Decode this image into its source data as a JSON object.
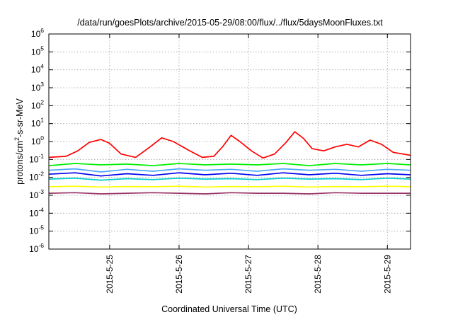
{
  "chart_data": {
    "type": "line",
    "title": "/data/run/goesPlots/archive/2015-05-29/08:00/flux/../flux/5daysMoonFluxes.txt",
    "xlabel": "Coordinated Universal Time (UTC)",
    "ylabel": "protons/cm²-s-sr-MeV",
    "y_scale": "log",
    "ylim": [
      1e-06,
      1000000.0
    ],
    "y_ticks": [
      {
        "base": "10",
        "exp": "-6",
        "value": 1e-06
      },
      {
        "base": "10",
        "exp": "-5",
        "value": 1e-05
      },
      {
        "base": "10",
        "exp": "-4",
        "value": 0.0001
      },
      {
        "base": "10",
        "exp": "-3",
        "value": 0.001
      },
      {
        "base": "10",
        "exp": "-2",
        "value": 0.01
      },
      {
        "base": "10",
        "exp": "-1",
        "value": 0.1
      },
      {
        "base": "10",
        "exp": "0",
        "value": 1
      },
      {
        "base": "10",
        "exp": "1",
        "value": 10.0
      },
      {
        "base": "10",
        "exp": "2",
        "value": 100.0
      },
      {
        "base": "10",
        "exp": "3",
        "value": 1000.0
      },
      {
        "base": "10",
        "exp": "4",
        "value": 10000.0
      },
      {
        "base": "10",
        "exp": "5",
        "value": 100000.0
      },
      {
        "base": "10",
        "exp": "6",
        "value": 1000000.0
      }
    ],
    "xlim": [
      "2015-05-24 03:00",
      "2015-05-29 08:00"
    ],
    "x_ticks": [
      {
        "label": "2015-5-25",
        "value": "2015-05-25 00:00"
      },
      {
        "label": "2015-5-26",
        "value": "2015-05-26 00:00"
      },
      {
        "label": "2015-5-27",
        "value": "2015-05-27 00:00"
      },
      {
        "label": "2015-5-28",
        "value": "2015-05-28 00:00"
      },
      {
        "label": "2015-5-29",
        "value": "2015-05-29 00:00"
      }
    ],
    "grid": true,
    "series": [
      {
        "color": "#ff0000",
        "x": [
          "2015-05-24 03:00",
          "2015-05-24 09:00",
          "2015-05-24 13:00",
          "2015-05-24 17:00",
          "2015-05-24 21:00",
          "2015-05-25 00:00",
          "2015-05-25 04:00",
          "2015-05-25 09:00",
          "2015-05-25 14:00",
          "2015-05-25 18:00",
          "2015-05-25 22:00",
          "2015-05-26 03:00",
          "2015-05-26 08:00",
          "2015-05-26 12:00",
          "2015-05-26 15:00",
          "2015-05-26 18:00",
          "2015-05-26 21:00",
          "2015-05-27 01:00",
          "2015-05-27 05:00",
          "2015-05-27 09:00",
          "2015-05-27 13:00",
          "2015-05-27 16:00",
          "2015-05-27 19:00",
          "2015-05-27 22:00",
          "2015-05-28 02:00",
          "2015-05-28 06:00",
          "2015-05-28 10:00",
          "2015-05-28 14:00",
          "2015-05-28 18:00",
          "2015-05-28 22:00",
          "2015-05-29 02:00",
          "2015-05-29 08:00"
        ],
        "y": [
          0.13,
          0.15,
          0.3,
          0.9,
          1.3,
          0.8,
          0.2,
          0.13,
          0.5,
          1.6,
          1.0,
          0.35,
          0.13,
          0.15,
          0.5,
          2.2,
          1.0,
          0.3,
          0.12,
          0.2,
          0.9,
          3.5,
          1.5,
          0.4,
          0.3,
          0.5,
          0.7,
          0.5,
          1.2,
          0.7,
          0.25,
          0.17
        ]
      },
      {
        "color": "#00ee00",
        "x": [
          "2015-05-24 03:00",
          "2015-05-24 12:00",
          "2015-05-24 21:00",
          "2015-05-25 06:00",
          "2015-05-25 15:00",
          "2015-05-26 00:00",
          "2015-05-26 09:00",
          "2015-05-26 18:00",
          "2015-05-27 03:00",
          "2015-05-27 12:00",
          "2015-05-27 21:00",
          "2015-05-28 06:00",
          "2015-05-28 15:00",
          "2015-05-29 00:00",
          "2015-05-29 08:00"
        ],
        "y": [
          0.045,
          0.06,
          0.05,
          0.055,
          0.045,
          0.06,
          0.05,
          0.055,
          0.05,
          0.06,
          0.045,
          0.06,
          0.05,
          0.06,
          0.05
        ]
      },
      {
        "color": "#4da6ff",
        "x": [
          "2015-05-24 03:00",
          "2015-05-24 12:00",
          "2015-05-24 21:00",
          "2015-05-25 06:00",
          "2015-05-25 15:00",
          "2015-05-26 00:00",
          "2015-05-26 09:00",
          "2015-05-26 18:00",
          "2015-05-27 03:00",
          "2015-05-27 12:00",
          "2015-05-27 21:00",
          "2015-05-28 06:00",
          "2015-05-28 15:00",
          "2015-05-29 00:00",
          "2015-05-29 08:00"
        ],
        "y": [
          0.025,
          0.03,
          0.02,
          0.028,
          0.022,
          0.03,
          0.025,
          0.028,
          0.022,
          0.03,
          0.025,
          0.028,
          0.022,
          0.028,
          0.025
        ]
      },
      {
        "color": "#0000ee",
        "x": [
          "2015-05-24 03:00",
          "2015-05-24 12:00",
          "2015-05-24 21:00",
          "2015-05-25 06:00",
          "2015-05-25 15:00",
          "2015-05-26 00:00",
          "2015-05-26 09:00",
          "2015-05-26 18:00",
          "2015-05-27 03:00",
          "2015-05-27 12:00",
          "2015-05-27 21:00",
          "2015-05-28 06:00",
          "2015-05-28 15:00",
          "2015-05-29 00:00",
          "2015-05-29 08:00"
        ],
        "y": [
          0.015,
          0.018,
          0.012,
          0.016,
          0.013,
          0.018,
          0.014,
          0.017,
          0.013,
          0.018,
          0.014,
          0.017,
          0.013,
          0.016,
          0.014
        ]
      },
      {
        "color": "#00cccc",
        "x": [
          "2015-05-24 03:00",
          "2015-05-24 12:00",
          "2015-05-24 21:00",
          "2015-05-25 06:00",
          "2015-05-25 15:00",
          "2015-05-26 00:00",
          "2015-05-26 09:00",
          "2015-05-26 18:00",
          "2015-05-27 03:00",
          "2015-05-27 12:00",
          "2015-05-27 21:00",
          "2015-05-28 06:00",
          "2015-05-28 15:00",
          "2015-05-29 00:00",
          "2015-05-29 08:00"
        ],
        "y": [
          0.008,
          0.009,
          0.007,
          0.0085,
          0.0075,
          0.009,
          0.008,
          0.0085,
          0.0075,
          0.009,
          0.008,
          0.0085,
          0.0075,
          0.009,
          0.008
        ]
      },
      {
        "color": "#ffff00",
        "x": [
          "2015-05-24 03:00",
          "2015-05-24 12:00",
          "2015-05-24 21:00",
          "2015-05-25 06:00",
          "2015-05-25 15:00",
          "2015-05-26 00:00",
          "2015-05-26 09:00",
          "2015-05-26 18:00",
          "2015-05-27 03:00",
          "2015-05-27 12:00",
          "2015-05-27 21:00",
          "2015-05-28 06:00",
          "2015-05-28 15:00",
          "2015-05-29 00:00",
          "2015-05-29 08:00"
        ],
        "y": [
          0.003,
          0.0032,
          0.0029,
          0.0031,
          0.003,
          0.0032,
          0.0029,
          0.0031,
          0.003,
          0.0032,
          0.0029,
          0.0031,
          0.003,
          0.0032,
          0.003
        ]
      },
      {
        "color": "#993366",
        "x": [
          "2015-05-24 03:00",
          "2015-05-24 12:00",
          "2015-05-24 21:00",
          "2015-05-25 06:00",
          "2015-05-25 15:00",
          "2015-05-26 00:00",
          "2015-05-26 09:00",
          "2015-05-26 18:00",
          "2015-05-27 03:00",
          "2015-05-27 12:00",
          "2015-05-27 21:00",
          "2015-05-28 06:00",
          "2015-05-28 15:00",
          "2015-05-29 00:00",
          "2015-05-29 08:00"
        ],
        "y": [
          0.0013,
          0.0014,
          0.0012,
          0.0013,
          0.0014,
          0.0013,
          0.0012,
          0.0014,
          0.0013,
          0.0013,
          0.0012,
          0.0014,
          0.0013,
          0.0013,
          0.0013
        ]
      }
    ]
  }
}
